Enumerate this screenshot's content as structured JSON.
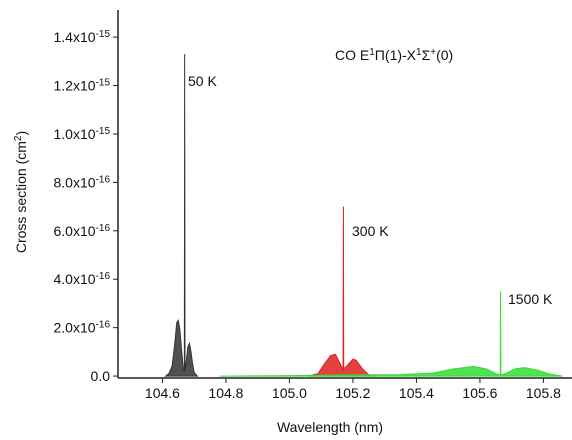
{
  "chart_data": {
    "type": "area",
    "title_parts": [
      {
        "text": "CO E"
      },
      {
        "text": "1",
        "sup": true
      },
      {
        "text": "Π(1)-X"
      },
      {
        "text": "1",
        "sup": true
      },
      {
        "text": "Σ"
      },
      {
        "text": "+",
        "sup": true
      },
      {
        "text": "(0)"
      }
    ],
    "x_label": "Wavelength (nm)",
    "y_label_parts": [
      {
        "text": "Cross section (cm"
      },
      {
        "text": "2",
        "sup": true
      },
      {
        "text": ")"
      }
    ],
    "xlim": [
      104.46,
      105.89
    ],
    "ylim": [
      -8e-18,
      1.512e-15
    ],
    "xticks": [
      104.6,
      104.8,
      {
        "value": 105,
        "label": "105.0"
      },
      105.2,
      105.4,
      105.6,
      105.8
    ],
    "yticks": [
      {
        "value": 0,
        "label": "0.0"
      },
      {
        "value": 2e-16,
        "label": "2.0x10",
        "sup": "-16"
      },
      {
        "value": 4e-16,
        "label": "4.0x10",
        "sup": "-16"
      },
      {
        "value": 6e-16,
        "label": "6.0x10",
        "sup": "-16"
      },
      {
        "value": 8e-16,
        "label": "8.0x10",
        "sup": "-16"
      },
      {
        "value": 1e-15,
        "label": "1.0x10",
        "sup": "-15"
      },
      {
        "value": 1.2e-15,
        "label": "1.2x10",
        "sup": "-15"
      },
      {
        "value": 1.4e-15,
        "label": "1.4x10",
        "sup": "-15"
      }
    ],
    "series": [
      {
        "name": "50 K",
        "color": "#333333",
        "x": [
          104.61,
          104.62,
          104.63,
          104.635,
          104.64,
          104.645,
          104.65,
          104.655,
          104.66,
          104.665,
          104.669,
          104.67,
          104.671,
          104.675,
          104.68,
          104.685,
          104.69,
          104.695,
          104.7,
          104.71
        ],
        "values": [
          0,
          1e-17,
          4e-17,
          9e-17,
          1.5e-16,
          2.2e-16,
          2.3e-16,
          1.9e-16,
          1.1e-16,
          4e-17,
          2e-17,
          1.33e-15,
          2e-17,
          6e-17,
          1.2e-16,
          1.35e-16,
          1e-16,
          5e-17,
          1.5e-17,
          0
        ]
      },
      {
        "name": "300 K",
        "color": "#e02020",
        "x": [
          105.06,
          105.09,
          105.11,
          105.13,
          105.145,
          105.16,
          105.169,
          105.17,
          105.171,
          105.18,
          105.2,
          105.21,
          105.23,
          105.25,
          105.27
        ],
        "values": [
          0,
          1e-17,
          5e-17,
          8.5e-17,
          9e-17,
          5e-17,
          2.5e-17,
          7e-16,
          3e-17,
          4e-17,
          7e-17,
          6.5e-17,
          3e-17,
          5e-18,
          0
        ]
      },
      {
        "name": "1500 K",
        "color": "#33dd33",
        "x": [
          104.78,
          104.9,
          105.0,
          105.2,
          105.35,
          105.45,
          105.52,
          105.58,
          105.62,
          105.65,
          105.664,
          105.665,
          105.666,
          105.68,
          105.71,
          105.74,
          105.78,
          105.82,
          105.86
        ],
        "values": [
          0,
          1e-18,
          2e-18,
          5e-18,
          6e-18,
          1.2e-17,
          3e-17,
          4e-17,
          3e-17,
          1e-17,
          5e-18,
          3.5e-16,
          5e-18,
          1e-17,
          3e-17,
          3.5e-17,
          2.5e-17,
          8e-18,
          0
        ]
      }
    ]
  }
}
